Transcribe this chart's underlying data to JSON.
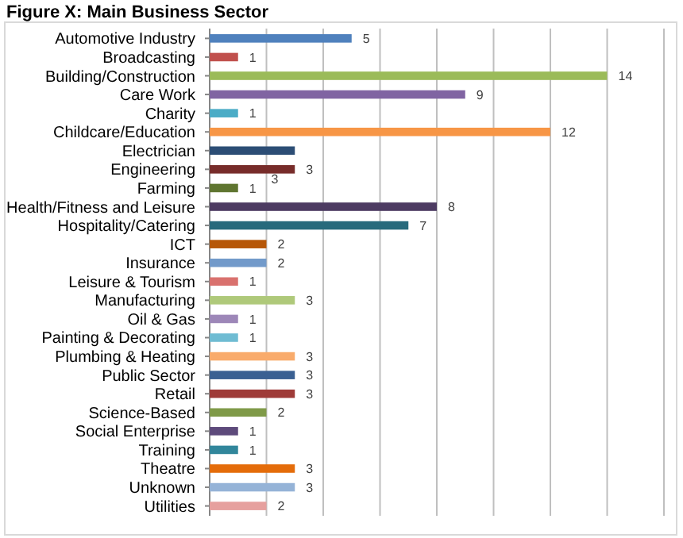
{
  "chart_data": {
    "type": "bar",
    "orientation": "horizontal",
    "title": "Figure X: Main Business Sector",
    "categories": [
      "Automotive Industry",
      "Broadcasting",
      "Building/Construction",
      "Care Work",
      "Charity",
      "Childcare/Education",
      "Electrician",
      "Engineering",
      "Farming",
      "Health/Fitness and Leisure",
      "Hospitality/Catering",
      "ICT",
      "Insurance",
      "Leisure & Tourism",
      "Manufacturing",
      "Oil & Gas",
      "Painting & Decorating",
      "Plumbing & Heating",
      "Public Sector",
      "Retail",
      "Science-Based",
      "Social Enterprise",
      "Training",
      "Theatre",
      "Unknown",
      "Utilities"
    ],
    "values": [
      5,
      1,
      14,
      9,
      1,
      12,
      3,
      3,
      1,
      8,
      7,
      2,
      2,
      1,
      3,
      1,
      1,
      3,
      3,
      3,
      2,
      1,
      1,
      3,
      3,
      2
    ],
    "colors": [
      "#4f81bd",
      "#c0504d",
      "#9bbb59",
      "#8064a2",
      "#4bacc6",
      "#f79646",
      "#2c4d75",
      "#772c2a",
      "#5f7530",
      "#4d3b62",
      "#276a7c",
      "#b65708",
      "#729aca",
      "#d9716e",
      "#afc97a",
      "#9d87b8",
      "#6fbcd3",
      "#f9ab6b",
      "#3a6092",
      "#9f3b38",
      "#7f9a48",
      "#5d4a7b",
      "#31869b",
      "#e46c0a",
      "#95b3d7",
      "#e6a09e"
    ],
    "value_labels": [
      "5",
      "1",
      "14",
      "9",
      "1",
      "12",
      null,
      "3",
      "1",
      "8",
      "7",
      "2",
      "2",
      "1",
      "3",
      "1",
      "1",
      "3",
      "3",
      "3",
      "2",
      "1",
      "1",
      "3",
      "3",
      "2"
    ],
    "annotations": [
      {
        "text": "3",
        "x": 2,
        "y": "Engineering"
      }
    ],
    "xlim": [
      0,
      16
    ],
    "xticks": [
      {
        "value": 0,
        "label": null
      },
      {
        "value": 2,
        "label": null
      },
      {
        "value": 4,
        "label": null
      },
      {
        "value": 6,
        "label": null
      },
      {
        "value": 8,
        "label": null
      },
      {
        "value": 10,
        "label": null
      },
      {
        "value": 12,
        "label": null
      },
      {
        "value": 14,
        "label": null
      },
      {
        "value": 16,
        "label": null
      }
    ],
    "tick_labels": "y",
    "grid": "x"
  }
}
